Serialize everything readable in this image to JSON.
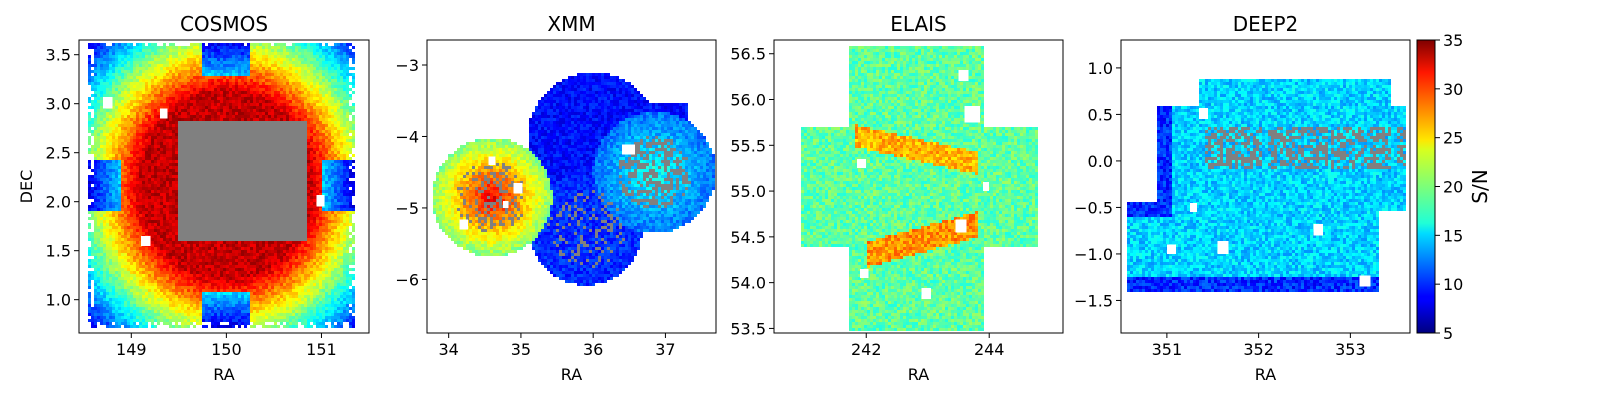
{
  "colors": {
    "masked": "#808080",
    "background": "#ffffff",
    "colormap": "jet"
  },
  "chart_data": [
    {
      "type": "heatmap",
      "title": "COSMOS",
      "xlabel": "RA",
      "ylabel": "DEC",
      "xlim": [
        148.45,
        151.5
      ],
      "ylim": [
        0.66,
        3.65
      ],
      "xticks": [
        {
          "v": 149,
          "label": "149"
        },
        {
          "v": 150,
          "label": "150"
        },
        {
          "v": 151,
          "label": "151"
        }
      ],
      "yticks": [
        {
          "v": 1.0,
          "label": "1.0"
        },
        {
          "v": 1.5,
          "label": "1.5"
        },
        {
          "v": 2.0,
          "label": "2.0"
        },
        {
          "v": 2.5,
          "label": "2.5"
        },
        {
          "v": 3.0,
          "label": "3.0"
        },
        {
          "v": 3.5,
          "label": "3.5"
        }
      ],
      "value_range": [
        5,
        35
      ],
      "description_of_values": "S/N highest (~33) in ring around central masked region, decreasing outward to ~8 at corners"
    },
    {
      "type": "heatmap",
      "title": "XMM",
      "xlabel": "RA",
      "ylabel": "",
      "xlim": [
        33.7,
        37.7
      ],
      "ylim": [
        -6.75,
        -2.65
      ],
      "xticks": [
        {
          "v": 34,
          "label": "34"
        },
        {
          "v": 35,
          "label": "35"
        },
        {
          "v": 36,
          "label": "36"
        },
        {
          "v": 37,
          "label": "37"
        }
      ],
      "yticks": [
        {
          "v": -6,
          "label": "−6"
        },
        {
          "v": -5,
          "label": "−5"
        },
        {
          "v": -4,
          "label": "−4"
        },
        {
          "v": -3,
          "label": "−3"
        }
      ],
      "value_range": [
        5,
        35
      ]
    },
    {
      "type": "heatmap",
      "title": "ELAIS",
      "xlabel": "RA",
      "ylabel": "",
      "xlim": [
        240.5,
        245.2
      ],
      "ylim": [
        53.45,
        56.65
      ],
      "xticks": [
        {
          "v": 242,
          "label": "242"
        },
        {
          "v": 244,
          "label": "244"
        }
      ],
      "yticks": [
        {
          "v": 53.5,
          "label": "53.5"
        },
        {
          "v": 54.0,
          "label": "54.0"
        },
        {
          "v": 54.5,
          "label": "54.5"
        },
        {
          "v": 55.0,
          "label": "55.0"
        },
        {
          "v": 55.5,
          "label": "55.5"
        },
        {
          "v": 56.0,
          "label": "56.0"
        },
        {
          "v": 56.5,
          "label": "56.5"
        }
      ],
      "value_range": [
        5,
        35
      ]
    },
    {
      "type": "heatmap",
      "title": "DEEP2",
      "xlabel": "RA",
      "ylabel": "",
      "xlim": [
        350.5,
        353.65
      ],
      "ylim": [
        -1.85,
        1.3
      ],
      "xticks": [
        {
          "v": 351,
          "label": "351"
        },
        {
          "v": 352,
          "label": "352"
        },
        {
          "v": 353,
          "label": "353"
        }
      ],
      "yticks": [
        {
          "v": -1.5,
          "label": "−1.5"
        },
        {
          "v": -1.0,
          "label": "−1.0"
        },
        {
          "v": -0.5,
          "label": "−0.5"
        },
        {
          "v": 0.0,
          "label": "0.0"
        },
        {
          "v": 0.5,
          "label": "0.5"
        },
        {
          "v": 1.0,
          "label": "1.0"
        }
      ],
      "value_range": [
        5,
        35
      ]
    }
  ],
  "colorbar": {
    "label": "S/N",
    "range": [
      5,
      35
    ],
    "ticks": [
      {
        "v": 5,
        "label": "5"
      },
      {
        "v": 10,
        "label": "10"
      },
      {
        "v": 15,
        "label": "15"
      },
      {
        "v": 20,
        "label": "20"
      },
      {
        "v": 25,
        "label": "25"
      },
      {
        "v": 30,
        "label": "30"
      },
      {
        "v": 35,
        "label": "35"
      }
    ]
  }
}
